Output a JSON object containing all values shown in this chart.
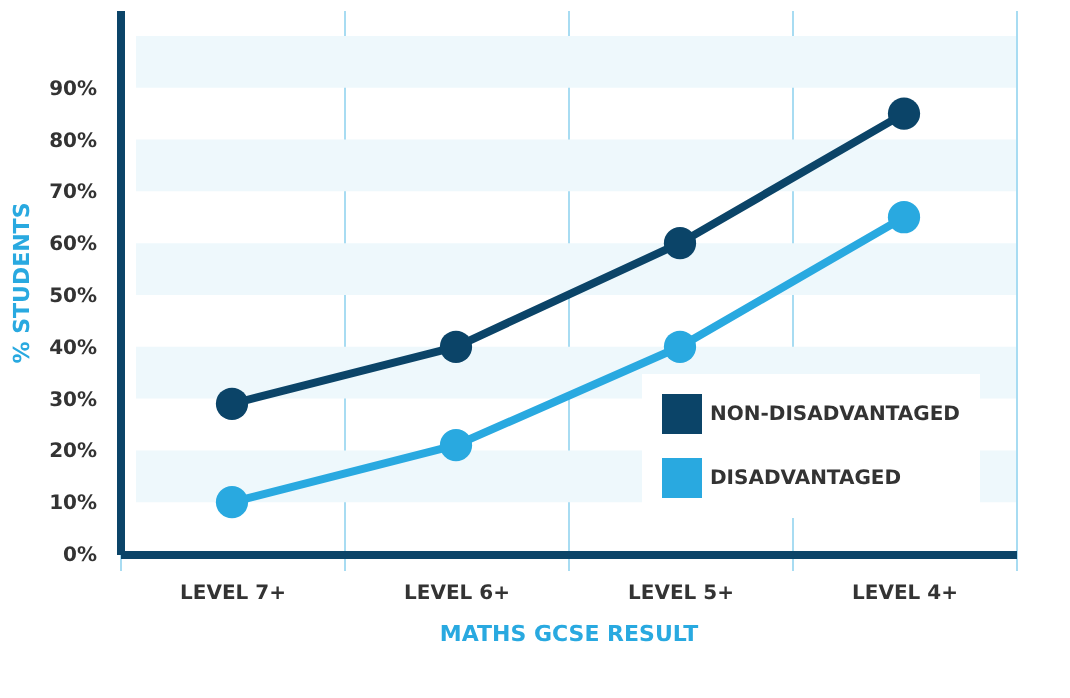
{
  "chart_data": {
    "type": "line",
    "xlabel": "MATHS GCSE RESULT",
    "ylabel": "% STUDENTS",
    "categories": [
      "LEVEL 7+",
      "LEVEL 6+",
      "LEVEL 5+",
      "LEVEL 4+"
    ],
    "series": [
      {
        "name": "NON-DISADVANTAGED",
        "color": "#0b4468",
        "values": [
          29,
          40,
          60,
          85
        ]
      },
      {
        "name": "DISADVANTAGED",
        "color": "#29a9e0",
        "values": [
          10,
          21,
          40,
          65
        ]
      }
    ],
    "ylim": [
      0,
      105
    ],
    "yticks": [
      {
        "value": 0,
        "label": "0%"
      },
      {
        "value": 10,
        "label": "10%"
      },
      {
        "value": 20,
        "label": "20%"
      },
      {
        "value": 30,
        "label": "30%"
      },
      {
        "value": 40,
        "label": "40%"
      },
      {
        "value": 50,
        "label": "50%"
      },
      {
        "value": 60,
        "label": "60%"
      },
      {
        "value": 70,
        "label": "70%"
      },
      {
        "value": 80,
        "label": "80%"
      },
      {
        "value": 90,
        "label": "90%"
      }
    ],
    "bands": [
      {
        "axis": "y",
        "from": 10,
        "to": 20,
        "color": "#eef8fc"
      },
      {
        "axis": "y",
        "from": 30,
        "to": 40,
        "color": "#eef8fc"
      },
      {
        "axis": "y",
        "from": 50,
        "to": 60,
        "color": "#eef8fc"
      },
      {
        "axis": "y",
        "from": 70,
        "to": 80,
        "color": "#eef8fc"
      },
      {
        "axis": "y",
        "from": 90,
        "to": 100,
        "color": "#eef8fc"
      }
    ],
    "grid": true,
    "legend": "bottom right",
    "marker": "circle",
    "line_style": "solid"
  }
}
